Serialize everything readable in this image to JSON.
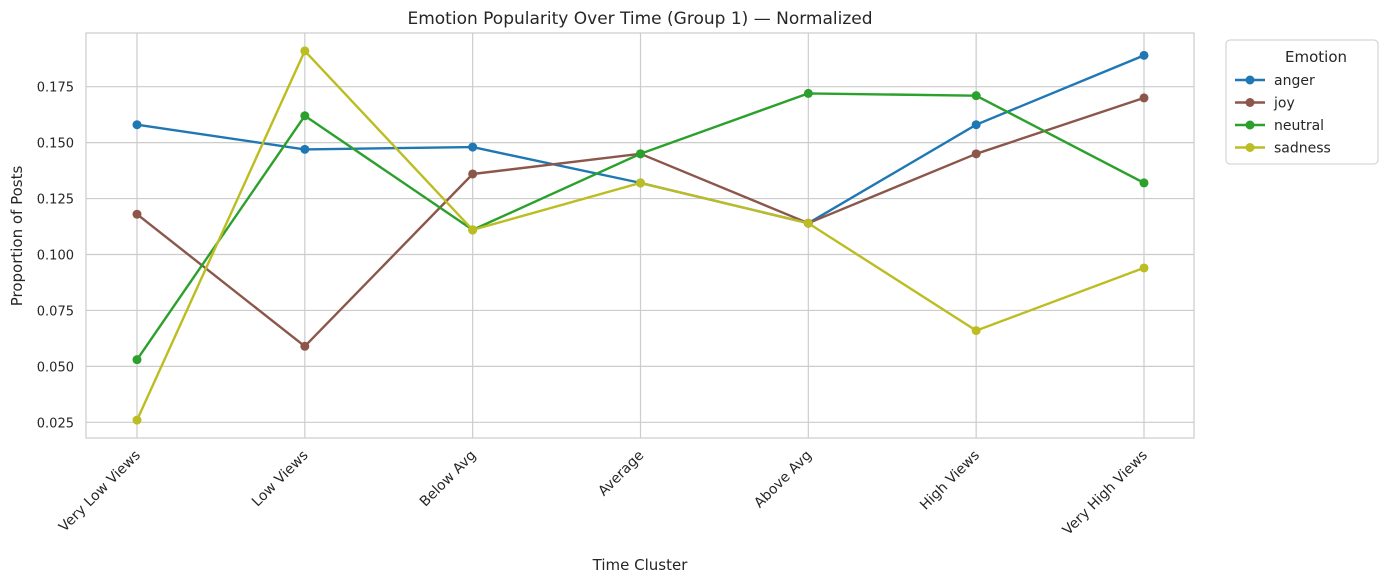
{
  "chart_data": {
    "type": "line",
    "title": "Emotion Popularity Over Time (Group 1) — Normalized",
    "xlabel": "Time Cluster",
    "ylabel": "Proportion of Posts",
    "categories": [
      "Very Low Views",
      "Low Views",
      "Below Avg",
      "Average",
      "Above Avg",
      "High Views",
      "Very High Views"
    ],
    "ylim": [
      0.018,
      0.199
    ],
    "yticks": [
      "0.025",
      "0.050",
      "0.075",
      "0.100",
      "0.125",
      "0.150",
      "0.175"
    ],
    "grid": true,
    "legend": {
      "title": "Emotion",
      "position": "outside-top-right"
    },
    "series": [
      {
        "name": "anger",
        "color": "#1f77b4",
        "values": [
          0.158,
          0.147,
          0.148,
          0.132,
          0.114,
          0.158,
          0.189
        ]
      },
      {
        "name": "joy",
        "color": "#8c564b",
        "values": [
          0.118,
          0.059,
          0.136,
          0.145,
          0.114,
          0.145,
          0.17
        ]
      },
      {
        "name": "neutral",
        "color": "#2ca02c",
        "values": [
          0.053,
          0.162,
          0.111,
          0.145,
          0.172,
          0.171,
          0.132
        ]
      },
      {
        "name": "sadness",
        "color": "#bcbd22",
        "values": [
          0.026,
          0.191,
          0.111,
          0.132,
          0.114,
          0.066,
          0.094
        ]
      }
    ]
  }
}
